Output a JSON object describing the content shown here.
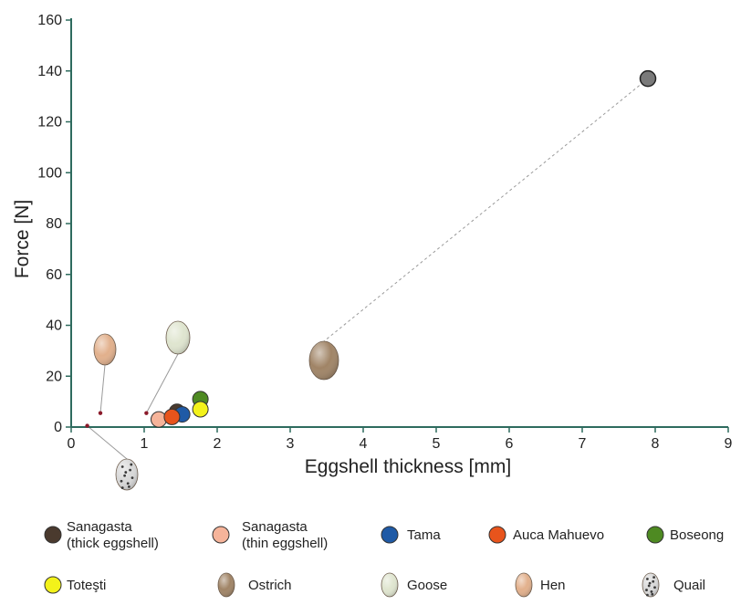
{
  "chart_data": {
    "type": "scatter",
    "title": "",
    "xlabel": "Eggshell thickness [mm]",
    "ylabel": "Force [N]",
    "xlim": [
      0,
      9
    ],
    "ylim": [
      0,
      160
    ],
    "x_ticks": [
      "0",
      "1",
      "2",
      "3",
      "4",
      "5",
      "6",
      "7",
      "8",
      "9"
    ],
    "y_ticks": [
      "0",
      "20",
      "40",
      "60",
      "80",
      "100",
      "120",
      "140",
      "160"
    ],
    "grid": false,
    "colors": {
      "axis": "#2e6b5e",
      "leader": "#9a9a9a",
      "point_marker": "#8b1a2a"
    },
    "series": [
      {
        "name": "Sanagasta (thick eggshell)",
        "color": "#4a3a2e",
        "points": [
          {
            "x": 1.45,
            "y": 6
          }
        ]
      },
      {
        "name": "Sanagasta (thin eggshell)",
        "color": "#f6b49a",
        "points": [
          {
            "x": 1.2,
            "y": 3
          }
        ]
      },
      {
        "name": "Tama",
        "color": "#1f5aa6",
        "points": [
          {
            "x": 1.52,
            "y": 5
          }
        ]
      },
      {
        "name": "Auca Mahuevo",
        "color": "#e8541c",
        "points": [
          {
            "x": 1.38,
            "y": 4
          }
        ]
      },
      {
        "name": "Boseong",
        "color": "#4e8a22",
        "points": [
          {
            "x": 1.77,
            "y": 11
          }
        ]
      },
      {
        "name": "Toteşti",
        "color": "#f3f21a",
        "points": [
          {
            "x": 1.77,
            "y": 7
          }
        ]
      },
      {
        "name": "Ostrich",
        "color": "#a08466",
        "points": [
          {
            "x": 7.9,
            "y": 137
          }
        ]
      },
      {
        "name": "Goose",
        "color": "#dfe5cf",
        "points": [
          {
            "x": 1.03,
            "y": 5.5
          }
        ]
      },
      {
        "name": "Hen",
        "color": "#e2b08c",
        "points": [
          {
            "x": 0.4,
            "y": 5.5
          }
        ]
      },
      {
        "name": "Quail",
        "color": "#d8d8d8",
        "points": [
          {
            "x": 0.22,
            "y": 0.5
          }
        ]
      }
    ]
  },
  "legend": {
    "row1": [
      {
        "line1": "Sanagasta",
        "line2": "(thick eggshell)",
        "color": "#4a3a2e",
        "icon": "circle"
      },
      {
        "line1": "Sanagasta",
        "line2": "(thin eggshell)",
        "color": "#f6b49a",
        "icon": "circle"
      },
      {
        "line1": "Tama",
        "line2": "",
        "color": "#1f5aa6",
        "icon": "circle"
      },
      {
        "line1": "Auca Mahuevo",
        "line2": "",
        "color": "#e8541c",
        "icon": "circle"
      },
      {
        "line1": "Boseong",
        "line2": "",
        "color": "#4e8a22",
        "icon": "circle"
      }
    ],
    "row2": [
      {
        "line1": "Toteşti",
        "line2": "",
        "color": "#f3f21a",
        "icon": "circle"
      },
      {
        "line1": "Ostrich",
        "line2": "",
        "color": "#a08466",
        "icon": "egg"
      },
      {
        "line1": "Goose",
        "line2": "",
        "color": "#dfe5cf",
        "icon": "egg"
      },
      {
        "line1": "Hen",
        "line2": "",
        "color": "#e2b08c",
        "icon": "egg"
      },
      {
        "line1": "Quail",
        "line2": "",
        "color": "#d8d8d8",
        "icon": "quail-egg"
      }
    ]
  }
}
